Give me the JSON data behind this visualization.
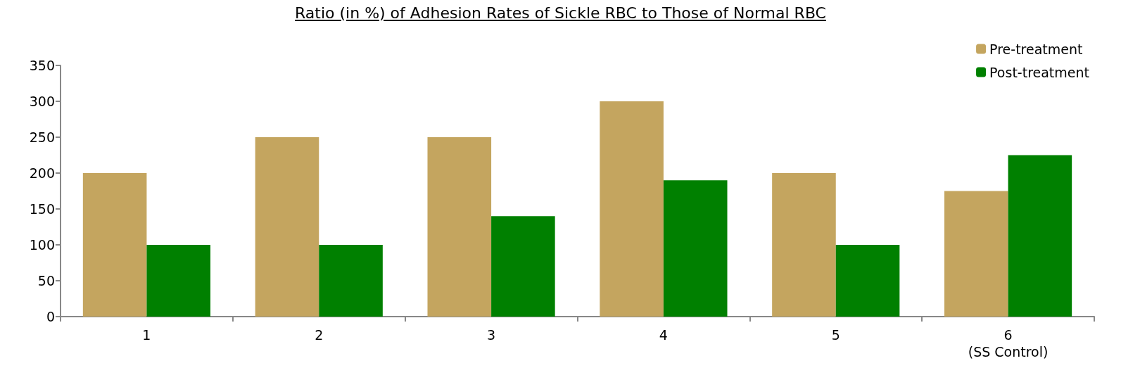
{
  "chart_data": {
    "type": "bar",
    "title": "Ratio (in %) of Adhesion Rates of Sickle RBC to Those of Normal RBC",
    "categories": [
      "1",
      "2",
      "3",
      "4",
      "5",
      "6\n(SS Control)"
    ],
    "series": [
      {
        "name": "Pre-treatment",
        "color": "#c4a55f",
        "values": [
          200,
          250,
          250,
          300,
          200,
          175
        ]
      },
      {
        "name": "Post-treatment",
        "color": "#008000",
        "values": [
          100,
          100,
          140,
          190,
          100,
          225
        ]
      }
    ],
    "ylim": [
      0,
      350
    ],
    "yticks": [
      0,
      50,
      100,
      150,
      200,
      250,
      300,
      350
    ],
    "grid": false,
    "legend": "top right"
  }
}
